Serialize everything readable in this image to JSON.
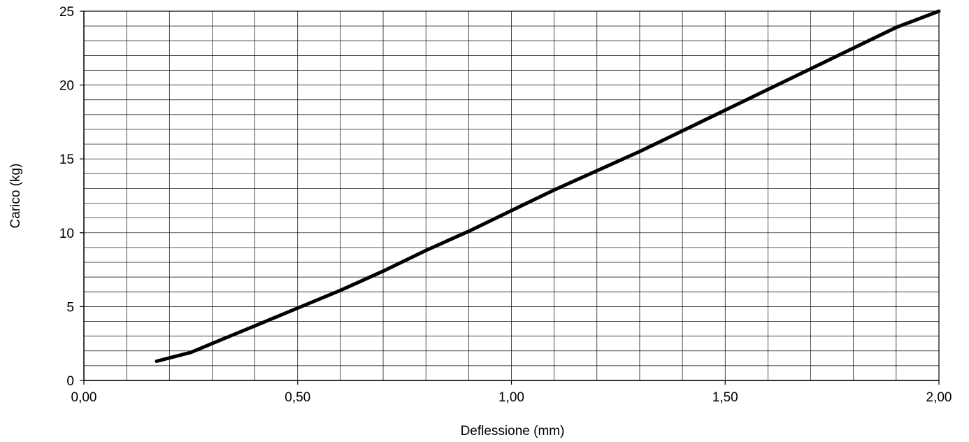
{
  "chart_data": {
    "type": "line",
    "title": "",
    "xlabel": "Deflessione (mm)",
    "ylabel": "Carico (kg)",
    "xlim": [
      0,
      2
    ],
    "ylim": [
      0,
      25
    ],
    "x_ticks": [
      0,
      0.5,
      1,
      1.5,
      2
    ],
    "x_tick_labels": [
      "0,00",
      "0,50",
      "1,00",
      "1,50",
      "2,00"
    ],
    "y_ticks": [
      0,
      5,
      10,
      15,
      20,
      25
    ],
    "y_tick_labels": [
      "0",
      "5",
      "10",
      "15",
      "20",
      "25"
    ],
    "x_minor_step": 0.1,
    "y_minor_step": 1,
    "grid": true,
    "legend": "none",
    "series": [
      {
        "color": "#000000",
        "points": [
          [
            0.17,
            1.3
          ],
          [
            0.25,
            1.9
          ],
          [
            0.3,
            2.5
          ],
          [
            0.35,
            3.1
          ],
          [
            0.4,
            3.7
          ],
          [
            0.45,
            4.3
          ],
          [
            0.5,
            4.9
          ],
          [
            0.6,
            6.1
          ],
          [
            0.7,
            7.4
          ],
          [
            0.8,
            8.8
          ],
          [
            0.9,
            10.1
          ],
          [
            1.0,
            11.5
          ],
          [
            1.1,
            12.9
          ],
          [
            1.2,
            14.2
          ],
          [
            1.3,
            15.5
          ],
          [
            1.4,
            16.9
          ],
          [
            1.5,
            18.3
          ],
          [
            1.6,
            19.7
          ],
          [
            1.7,
            21.1
          ],
          [
            1.8,
            22.5
          ],
          [
            1.9,
            23.9
          ],
          [
            2.0,
            25.0
          ]
        ]
      }
    ]
  }
}
